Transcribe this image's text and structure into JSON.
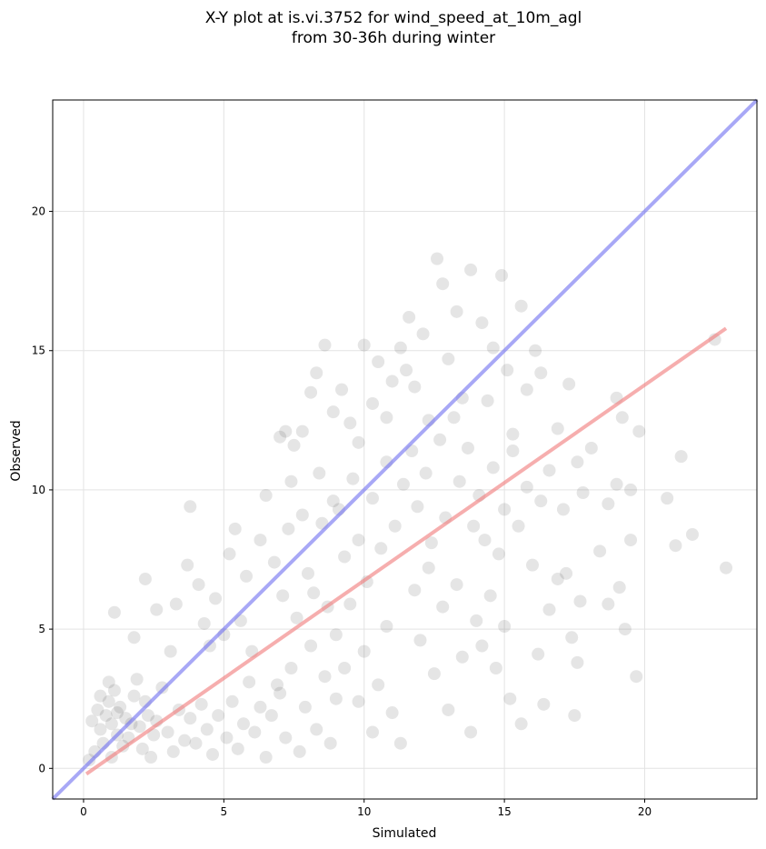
{
  "chart_data": {
    "type": "scatter",
    "title": [
      "X-Y plot at is.vi.3752 for wind_speed_at_10m_agl",
      "from 30-36h during winter"
    ],
    "xlabel": "Simulated",
    "ylabel": "Observed",
    "xlim": [
      -1.1,
      24.0
    ],
    "ylim": [
      -1.1,
      24.0
    ],
    "xticks": [
      0,
      5,
      10,
      15,
      20
    ],
    "yticks": [
      0,
      5,
      10,
      15,
      20
    ],
    "grid": true,
    "points_color": "#333333",
    "reference_line": {
      "x": [
        -1.1,
        24.0
      ],
      "y": [
        -1.1,
        24.0
      ],
      "color": "#6e6ef0"
    },
    "regression_line": {
      "x": [
        0.1,
        22.9
      ],
      "y": [
        -0.2,
        15.8
      ],
      "color": "#f07878"
    },
    "points": [
      [
        0.3,
        1.7
      ],
      [
        0.5,
        2.1
      ],
      [
        0.6,
        1.4
      ],
      [
        0.8,
        1.9
      ],
      [
        0.9,
        2.4
      ],
      [
        1.0,
        1.6
      ],
      [
        1.1,
        2.8
      ],
      [
        1.2,
        1.2
      ],
      [
        1.3,
        2.2
      ],
      [
        1.5,
        1.8
      ],
      [
        0.4,
        0.6
      ],
      [
        0.7,
        0.9
      ],
      [
        1.0,
        0.4
      ],
      [
        1.4,
        0.8
      ],
      [
        1.6,
        1.1
      ],
      [
        1.8,
        2.6
      ],
      [
        2.0,
        1.5
      ],
      [
        2.1,
        0.7
      ],
      [
        2.3,
        1.9
      ],
      [
        2.5,
        1.2
      ],
      [
        0.2,
        0.3
      ],
      [
        0.6,
        2.6
      ],
      [
        0.9,
        3.1
      ],
      [
        1.2,
        2.0
      ],
      [
        1.7,
        1.6
      ],
      [
        1.9,
        3.2
      ],
      [
        2.2,
        2.4
      ],
      [
        2.4,
        0.4
      ],
      [
        2.6,
        1.7
      ],
      [
        2.8,
        2.9
      ],
      [
        3.0,
        1.3
      ],
      [
        3.2,
        0.6
      ],
      [
        3.4,
        2.1
      ],
      [
        3.6,
        1.0
      ],
      [
        3.8,
        1.8
      ],
      [
        4.0,
        0.9
      ],
      [
        4.2,
        2.3
      ],
      [
        4.4,
        1.4
      ],
      [
        4.6,
        0.5
      ],
      [
        4.8,
        1.9
      ],
      [
        1.1,
        5.6
      ],
      [
        1.8,
        4.7
      ],
      [
        2.2,
        6.8
      ],
      [
        2.6,
        5.7
      ],
      [
        3.1,
        4.2
      ],
      [
        3.3,
        5.9
      ],
      [
        3.7,
        7.3
      ],
      [
        3.8,
        9.4
      ],
      [
        4.1,
        6.6
      ],
      [
        4.3,
        5.2
      ],
      [
        4.5,
        4.4
      ],
      [
        4.7,
        6.1
      ],
      [
        5.0,
        4.8
      ],
      [
        5.2,
        7.7
      ],
      [
        5.4,
        8.6
      ],
      [
        5.6,
        5.3
      ],
      [
        5.8,
        6.9
      ],
      [
        6.0,
        4.2
      ],
      [
        6.3,
        8.2
      ],
      [
        6.5,
        9.8
      ],
      [
        5.1,
        1.1
      ],
      [
        5.3,
        2.4
      ],
      [
        5.5,
        0.7
      ],
      [
        5.7,
        1.6
      ],
      [
        5.9,
        3.1
      ],
      [
        6.1,
        1.3
      ],
      [
        6.3,
        2.2
      ],
      [
        6.5,
        0.4
      ],
      [
        6.7,
        1.9
      ],
      [
        6.9,
        3.0
      ],
      [
        7.0,
        11.9
      ],
      [
        7.2,
        12.1
      ],
      [
        7.5,
        11.6
      ],
      [
        7.8,
        12.1
      ],
      [
        8.1,
        13.5
      ],
      [
        8.3,
        14.2
      ],
      [
        8.6,
        15.2
      ],
      [
        8.9,
        12.8
      ],
      [
        8.4,
        10.6
      ],
      [
        7.4,
        10.3
      ],
      [
        6.8,
        7.4
      ],
      [
        7.1,
        6.2
      ],
      [
        7.3,
        8.6
      ],
      [
        7.6,
        5.4
      ],
      [
        7.8,
        9.1
      ],
      [
        8.0,
        7.0
      ],
      [
        8.2,
        6.3
      ],
      [
        8.5,
        8.8
      ],
      [
        8.7,
        5.8
      ],
      [
        8.9,
        9.6
      ],
      [
        7.0,
        2.7
      ],
      [
        7.2,
        1.1
      ],
      [
        7.4,
        3.6
      ],
      [
        7.7,
        0.6
      ],
      [
        7.9,
        2.2
      ],
      [
        8.1,
        4.4
      ],
      [
        8.3,
        1.4
      ],
      [
        8.6,
        3.3
      ],
      [
        8.8,
        0.9
      ],
      [
        9.0,
        2.5
      ],
      [
        9.2,
        13.6
      ],
      [
        9.5,
        12.4
      ],
      [
        9.8,
        11.7
      ],
      [
        10.0,
        15.2
      ],
      [
        10.3,
        13.1
      ],
      [
        10.5,
        14.6
      ],
      [
        10.8,
        12.6
      ],
      [
        11.0,
        13.9
      ],
      [
        11.3,
        15.1
      ],
      [
        11.5,
        14.3
      ],
      [
        9.1,
        9.3
      ],
      [
        9.3,
        7.6
      ],
      [
        9.6,
        10.4
      ],
      [
        9.8,
        8.2
      ],
      [
        10.1,
        6.7
      ],
      [
        10.3,
        9.7
      ],
      [
        10.6,
        7.9
      ],
      [
        10.8,
        11.0
      ],
      [
        11.1,
        8.7
      ],
      [
        11.4,
        10.2
      ],
      [
        9.0,
        4.8
      ],
      [
        9.3,
        3.6
      ],
      [
        9.5,
        5.9
      ],
      [
        9.8,
        2.4
      ],
      [
        10.0,
        4.2
      ],
      [
        10.3,
        1.3
      ],
      [
        10.5,
        3.0
      ],
      [
        10.8,
        5.1
      ],
      [
        11.0,
        2.0
      ],
      [
        11.3,
        0.9
      ],
      [
        11.6,
        16.2
      ],
      [
        11.8,
        13.7
      ],
      [
        12.1,
        15.6
      ],
      [
        12.3,
        12.5
      ],
      [
        12.6,
        18.3
      ],
      [
        12.8,
        17.4
      ],
      [
        13.0,
        14.7
      ],
      [
        13.3,
        16.4
      ],
      [
        13.5,
        13.3
      ],
      [
        13.8,
        17.9
      ],
      [
        11.7,
        11.4
      ],
      [
        11.9,
        9.4
      ],
      [
        12.2,
        10.6
      ],
      [
        12.4,
        8.1
      ],
      [
        12.7,
        11.8
      ],
      [
        12.9,
        9.0
      ],
      [
        13.2,
        12.6
      ],
      [
        13.4,
        10.3
      ],
      [
        13.7,
        11.5
      ],
      [
        13.9,
        8.7
      ],
      [
        11.8,
        6.4
      ],
      [
        12.0,
        4.6
      ],
      [
        12.3,
        7.2
      ],
      [
        12.5,
        3.4
      ],
      [
        12.8,
        5.8
      ],
      [
        13.0,
        2.1
      ],
      [
        13.3,
        6.6
      ],
      [
        13.5,
        4.0
      ],
      [
        13.8,
        1.3
      ],
      [
        14.0,
        5.3
      ],
      [
        14.2,
        16.0
      ],
      [
        14.4,
        13.2
      ],
      [
        14.6,
        15.1
      ],
      [
        14.9,
        17.7
      ],
      [
        15.1,
        14.3
      ],
      [
        15.3,
        12.0
      ],
      [
        15.6,
        16.6
      ],
      [
        15.8,
        13.6
      ],
      [
        16.1,
        15.0
      ],
      [
        16.3,
        14.2
      ],
      [
        14.1,
        9.8
      ],
      [
        14.3,
        8.2
      ],
      [
        14.6,
        10.8
      ],
      [
        14.8,
        7.7
      ],
      [
        15.0,
        9.3
      ],
      [
        15.3,
        11.4
      ],
      [
        15.5,
        8.7
      ],
      [
        15.8,
        10.1
      ],
      [
        16.0,
        7.3
      ],
      [
        16.3,
        9.6
      ],
      [
        14.2,
        4.4
      ],
      [
        14.5,
        6.2
      ],
      [
        14.7,
        3.6
      ],
      [
        15.0,
        5.1
      ],
      [
        15.2,
        2.5
      ],
      [
        15.6,
        1.6
      ],
      [
        16.2,
        4.1
      ],
      [
        16.4,
        2.3
      ],
      [
        16.6,
        5.7
      ],
      [
        16.9,
        6.8
      ],
      [
        16.6,
        10.7
      ],
      [
        16.9,
        12.2
      ],
      [
        17.1,
        9.3
      ],
      [
        17.3,
        13.8
      ],
      [
        17.6,
        11.0
      ],
      [
        17.8,
        9.9
      ],
      [
        18.1,
        11.5
      ],
      [
        18.4,
        7.8
      ],
      [
        18.7,
        9.5
      ],
      [
        19.0,
        10.2
      ],
      [
        17.2,
        7.0
      ],
      [
        17.4,
        4.7
      ],
      [
        17.7,
        6.0
      ],
      [
        17.6,
        3.8
      ],
      [
        17.5,
        1.9
      ],
      [
        18.7,
        5.9
      ],
      [
        19.1,
        6.5
      ],
      [
        19.3,
        5.0
      ],
      [
        19.5,
        8.2
      ],
      [
        19.7,
        3.3
      ],
      [
        19.0,
        13.3
      ],
      [
        19.2,
        12.6
      ],
      [
        19.5,
        10.0
      ],
      [
        19.8,
        12.1
      ],
      [
        20.8,
        9.7
      ],
      [
        21.1,
        8.0
      ],
      [
        21.3,
        11.2
      ],
      [
        21.7,
        8.4
      ],
      [
        22.5,
        15.4
      ],
      [
        22.9,
        7.2
      ]
    ]
  }
}
